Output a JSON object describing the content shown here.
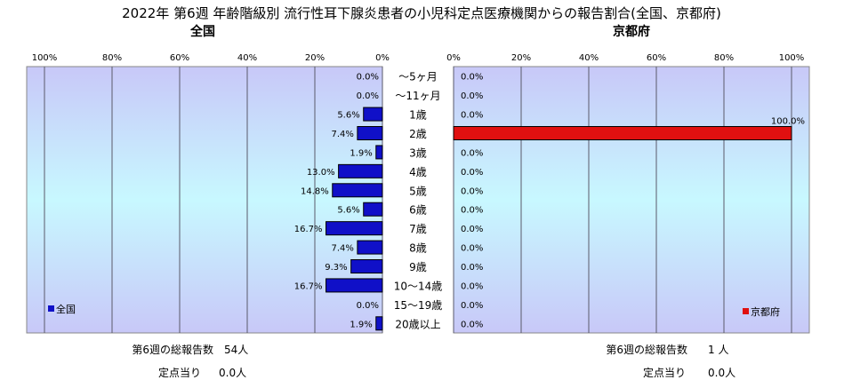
{
  "title": "2022年 第6週 年齢階級別 流行性耳下腺炎患者の小児科定点医療機関からの報告割合(全国、京都府)",
  "chart_data": [
    {
      "type": "bar",
      "orientation": "horizontal",
      "title": "全国",
      "legend": "全国",
      "legend_position": "bottom-left",
      "color": "#1010c8",
      "xlim": [
        0,
        100
      ],
      "direction": "right-to-left",
      "x_ticks": [
        "100%",
        "80%",
        "60%",
        "40%",
        "20%",
        "0%"
      ],
      "categories": [
        "～5ヶ月",
        "～11ヶ月",
        "1歳",
        "2歳",
        "3歳",
        "4歳",
        "5歳",
        "6歳",
        "7歳",
        "8歳",
        "9歳",
        "10～14歳",
        "15～19歳",
        "20歳以上"
      ],
      "values": [
        0.0,
        0.0,
        5.6,
        7.4,
        1.9,
        13.0,
        14.8,
        5.6,
        16.7,
        7.4,
        9.3,
        16.7,
        0.0,
        1.9
      ],
      "labels": [
        "0.0%",
        "0.0%",
        "5.6%",
        "7.4%",
        "1.9%",
        "13.0%",
        "14.8%",
        "5.6%",
        "16.7%",
        "7.4%",
        "9.3%",
        "16.7%",
        "0.0%",
        "1.9%"
      ],
      "grid": true
    },
    {
      "type": "bar",
      "orientation": "horizontal",
      "title": "京都府",
      "legend": "京都府",
      "legend_position": "bottom-right",
      "color": "#e01010",
      "xlim": [
        0,
        100
      ],
      "direction": "left-to-right",
      "x_ticks": [
        "0%",
        "20%",
        "40%",
        "60%",
        "80%",
        "100%"
      ],
      "categories": [
        "～5ヶ月",
        "～11ヶ月",
        "1歳",
        "2歳",
        "3歳",
        "4歳",
        "5歳",
        "6歳",
        "7歳",
        "8歳",
        "9歳",
        "10～14歳",
        "15～19歳",
        "20歳以上"
      ],
      "values": [
        0.0,
        0.0,
        0.0,
        100.0,
        0.0,
        0.0,
        0.0,
        0.0,
        0.0,
        0.0,
        0.0,
        0.0,
        0.0,
        0.0
      ],
      "labels": [
        "0.0%",
        "0.0%",
        "0.0%",
        "100.0%",
        "0.0%",
        "0.0%",
        "0.0%",
        "0.0%",
        "0.0%",
        "0.0%",
        "0.0%",
        "0.0%",
        "0.0%",
        "0.0%"
      ],
      "grid": true
    }
  ],
  "footer": {
    "national": {
      "total_label": "第6週の総報告数",
      "total_value": "54人",
      "per_label": "定点当り",
      "per_value": "0.0人"
    },
    "kyoto": {
      "total_label": "第6週の総報告数",
      "total_value": "1 人",
      "per_label": "定点当り",
      "per_value": "0.0人"
    }
  }
}
